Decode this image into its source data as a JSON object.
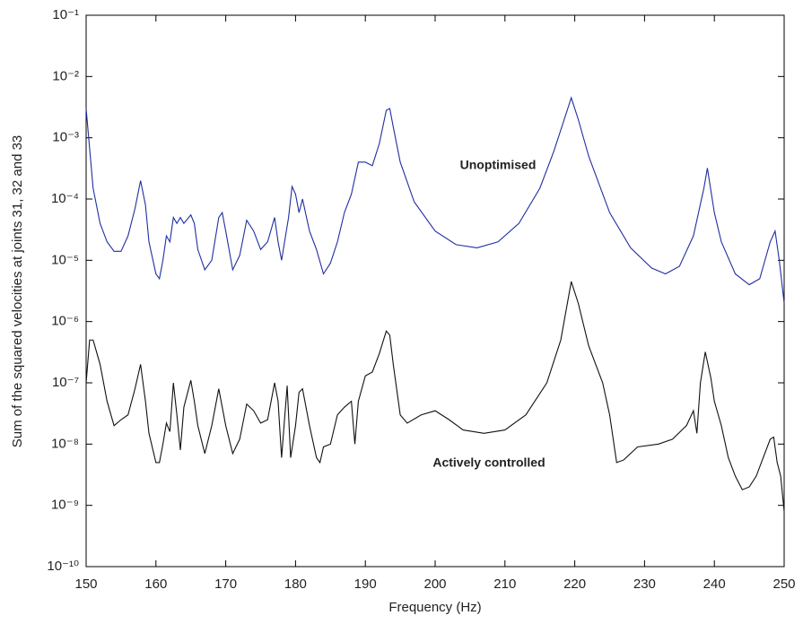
{
  "chart_data": {
    "type": "line",
    "xlabel": "Frequency (Hz)",
    "ylabel": "Sum of the squared velocities at joints 31, 32 and 33",
    "log_y": true,
    "xlim": [
      150,
      250
    ],
    "xticks": [
      150,
      160,
      170,
      180,
      190,
      200,
      210,
      220,
      230,
      240,
      250
    ],
    "ylim": [
      1e-10,
      0.1
    ],
    "yticks": [
      {
        "value": 1e-10,
        "label": "10⁻¹⁰"
      },
      {
        "value": 1e-09,
        "label": "10⁻⁹"
      },
      {
        "value": 1e-08,
        "label": "10⁻⁸"
      },
      {
        "value": 1e-07,
        "label": "10⁻⁷"
      },
      {
        "value": 1e-06,
        "label": "10⁻⁶"
      },
      {
        "value": 1e-05,
        "label": "10⁻⁵"
      },
      {
        "value": 0.0001,
        "label": "10⁻⁴"
      },
      {
        "value": 0.001,
        "label": "10⁻³"
      },
      {
        "value": 0.01,
        "label": "10⁻²"
      },
      {
        "value": 0.1,
        "label": "10⁻¹"
      }
    ],
    "series": [
      {
        "name": "Unoptimised",
        "color": "#1f2fa0",
        "x": [
          150,
          151,
          152,
          153,
          154,
          155,
          156,
          157,
          157.8,
          158.5,
          159,
          160,
          160.5,
          161,
          161.5,
          162,
          162.5,
          163,
          163.5,
          164,
          165,
          165.5,
          166,
          167,
          168,
          169,
          169.5,
          170,
          171,
          172,
          173,
          174,
          175,
          176,
          177,
          177.5,
          178,
          179,
          179.5,
          180,
          180.5,
          181,
          182,
          183,
          184,
          185,
          186,
          187,
          188,
          189,
          190,
          191,
          192,
          193,
          193.5,
          194,
          195,
          197,
          200,
          203,
          206,
          209,
          212,
          215,
          217,
          218.5,
          219.5,
          220.5,
          222,
          225,
          228,
          231,
          233,
          235,
          237,
          238.5,
          239,
          240,
          241,
          243,
          245,
          246.5,
          248,
          248.7,
          249.3,
          250
        ],
        "values": [
          0.003,
          0.00015,
          4e-05,
          2e-05,
          1.4e-05,
          1.4e-05,
          2.5e-05,
          7e-05,
          0.0002,
          8e-05,
          2e-05,
          6e-06,
          5e-06,
          1e-05,
          2.5e-05,
          2e-05,
          5e-05,
          4e-05,
          5e-05,
          4e-05,
          5.5e-05,
          4e-05,
          1.5e-05,
          7e-06,
          1e-05,
          5e-05,
          6e-05,
          3e-05,
          7e-06,
          1.2e-05,
          4.5e-05,
          3e-05,
          1.5e-05,
          2e-05,
          5e-05,
          2e-05,
          1e-05,
          5e-05,
          0.00016,
          0.00012,
          6e-05,
          0.0001,
          3e-05,
          1.5e-05,
          6e-06,
          9e-06,
          2e-05,
          6e-05,
          0.00012,
          0.0004,
          0.0004,
          0.00035,
          0.0008,
          0.0028,
          0.003,
          0.0015,
          0.0004,
          9e-05,
          3e-05,
          1.8e-05,
          1.6e-05,
          2e-05,
          4e-05,
          0.00015,
          0.0006,
          0.002,
          0.0045,
          0.002,
          0.0005,
          6e-05,
          1.6e-05,
          7.5e-06,
          6e-06,
          8e-06,
          2.5e-05,
          0.00015,
          0.00032,
          6e-05,
          2e-05,
          6e-06,
          4e-06,
          5e-06,
          2e-05,
          3e-05,
          1e-05,
          2e-06
        ]
      },
      {
        "name": "Actively controlled",
        "color": "#111111",
        "x": [
          150,
          150.5,
          151,
          152,
          153,
          154,
          155,
          156,
          157,
          157.8,
          158.5,
          159,
          160,
          160.5,
          161,
          161.5,
          162,
          162.5,
          163,
          163.5,
          164,
          165,
          165.5,
          166,
          167,
          168,
          169,
          170,
          171,
          172,
          173,
          174,
          175,
          176,
          177,
          177.5,
          178,
          178.8,
          179.3,
          180,
          180.5,
          181,
          182,
          183,
          183.5,
          184,
          185,
          186,
          187,
          188,
          188.5,
          189,
          190,
          191,
          192,
          193,
          193.5,
          194,
          195,
          196,
          198,
          200,
          202,
          204,
          207,
          210,
          213,
          216,
          218,
          219.5,
          220.5,
          222,
          224,
          225,
          226,
          227,
          229,
          232,
          234,
          236,
          237,
          237.5,
          238,
          238.7,
          239.5,
          240,
          241,
          242,
          243,
          244,
          245,
          246,
          247,
          248,
          248.5,
          249,
          249.5,
          250
        ],
        "values": [
          1e-07,
          5e-07,
          5e-07,
          2e-07,
          5e-08,
          2e-08,
          2.5e-08,
          3e-08,
          8e-08,
          2e-07,
          5e-08,
          1.5e-08,
          5e-09,
          5e-09,
          1e-08,
          2.2e-08,
          1.6e-08,
          1e-07,
          3e-08,
          8e-09,
          4e-08,
          1.1e-07,
          5e-08,
          2e-08,
          7e-09,
          2e-08,
          8e-08,
          2e-08,
          7e-09,
          1.2e-08,
          4.5e-08,
          3.5e-08,
          2.2e-08,
          2.5e-08,
          1e-07,
          5e-08,
          6e-09,
          9e-08,
          6e-09,
          2e-08,
          7e-08,
          8e-08,
          2e-08,
          6e-09,
          5e-09,
          9e-09,
          1e-08,
          3e-08,
          4e-08,
          5e-08,
          1e-08,
          5e-08,
          1.3e-07,
          1.5e-07,
          3e-07,
          7e-07,
          6e-07,
          2e-07,
          3e-08,
          2.2e-08,
          3e-08,
          3.5e-08,
          2.5e-08,
          1.7e-08,
          1.5e-08,
          1.7e-08,
          3e-08,
          1e-07,
          5e-07,
          4.5e-06,
          2e-06,
          4e-07,
          1e-07,
          3e-08,
          5e-09,
          5.5e-09,
          9e-09,
          1e-08,
          1.2e-08,
          2e-08,
          3.5e-08,
          1.5e-08,
          1e-07,
          3.2e-07,
          1.2e-07,
          5e-08,
          2e-08,
          6e-09,
          3e-09,
          1.8e-09,
          2e-09,
          3e-09,
          6e-09,
          1.2e-08,
          1.3e-08,
          5e-09,
          3e-09,
          8e-10
        ]
      }
    ]
  }
}
